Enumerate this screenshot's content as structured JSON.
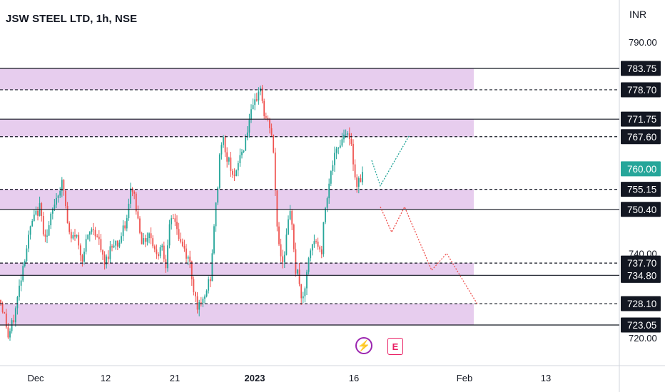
{
  "header": {
    "title": "JSW STEEL LTD, 1h, NSE",
    "currency": "INR"
  },
  "events": {
    "dividend_icon": "lightning-icon",
    "earnings_label": "E"
  },
  "colors": {
    "up": "#26a69a",
    "down": "#ef5350",
    "zone_fill": "#e7cdee",
    "current_price": "#26a69a",
    "projection_up": "#26a69a",
    "projection_down": "#ef5350",
    "lightning": "#9c27b0",
    "earnings": "#e91e63"
  },
  "chart_data": {
    "type": "candlestick",
    "ylim": [
      717,
      796
    ],
    "price_scale_ticks": [
      "790.00",
      "740.00",
      "720.00"
    ],
    "x_axis_labels": [
      "Dec",
      "12",
      "21",
      "2023",
      "16",
      "Feb",
      "13"
    ],
    "current_price": "760.00",
    "zones": [
      {
        "top": 783.75,
        "bottom": 778.7
      },
      {
        "top": 771.75,
        "bottom": 767.6
      },
      {
        "top": 755.15,
        "bottom": 750.4
      },
      {
        "top": 737.7,
        "bottom": 734.8
      },
      {
        "top": 728.1,
        "bottom": 723.05
      }
    ],
    "levels": [
      {
        "label": "783.75",
        "value": 783.75,
        "style": "solid"
      },
      {
        "label": "778.70",
        "value": 778.7,
        "style": "dashed"
      },
      {
        "label": "771.75",
        "value": 771.75,
        "style": "solid"
      },
      {
        "label": "767.60",
        "value": 767.6,
        "style": "dashed"
      },
      {
        "label": "755.15",
        "value": 755.15,
        "style": "dashed"
      },
      {
        "label": "750.40",
        "value": 750.4,
        "style": "solid"
      },
      {
        "label": "737.70",
        "value": 737.7,
        "style": "dashed"
      },
      {
        "label": "734.80",
        "value": 734.8,
        "style": "solid"
      },
      {
        "label": "728.10",
        "value": 728.1,
        "style": "dashed"
      },
      {
        "label": "723.05",
        "value": 723.05,
        "style": "solid"
      }
    ],
    "price_path": [
      [
        0,
        729
      ],
      [
        5,
        726
      ],
      [
        8,
        724
      ],
      [
        11,
        720
      ],
      [
        15,
        722
      ],
      [
        20,
        725
      ],
      [
        26,
        731
      ],
      [
        32,
        737
      ],
      [
        38,
        742
      ],
      [
        44,
        747
      ],
      [
        50,
        749
      ],
      [
        56,
        751
      ],
      [
        60,
        746
      ],
      [
        66,
        744
      ],
      [
        72,
        749
      ],
      [
        78,
        753
      ],
      [
        83,
        755
      ],
      [
        88,
        757
      ],
      [
        92,
        751
      ],
      [
        96,
        745
      ],
      [
        100,
        743
      ],
      [
        106,
        745
      ],
      [
        111,
        741
      ],
      [
        116,
        739
      ],
      [
        120,
        742
      ],
      [
        126,
        745
      ],
      [
        131,
        746
      ],
      [
        136,
        744
      ],
      [
        140,
        742
      ],
      [
        146,
        737
      ],
      [
        150,
        739
      ],
      [
        154,
        741
      ],
      [
        160,
        743
      ],
      [
        166,
        742
      ],
      [
        172,
        745
      ],
      [
        178,
        748
      ],
      [
        184,
        756
      ],
      [
        188,
        754
      ],
      [
        192,
        749
      ],
      [
        196,
        746
      ],
      [
        200,
        742
      ],
      [
        205,
        744
      ],
      [
        210,
        745
      ],
      [
        215,
        742
      ],
      [
        220,
        739
      ],
      [
        226,
        743
      ],
      [
        232,
        737
      ],
      [
        236,
        745
      ],
      [
        242,
        748
      ],
      [
        246,
        748
      ],
      [
        250,
        744
      ],
      [
        254,
        742
      ],
      [
        258,
        741
      ],
      [
        262,
        739
      ],
      [
        266,
        738
      ],
      [
        270,
        733
      ],
      [
        276,
        728
      ],
      [
        280,
        727
      ],
      [
        286,
        729
      ],
      [
        292,
        733
      ],
      [
        296,
        735
      ],
      [
        300,
        747
      ],
      [
        304,
        753
      ],
      [
        308,
        764
      ],
      [
        312,
        768
      ],
      [
        316,
        763
      ],
      [
        320,
        762
      ],
      [
        325,
        760
      ],
      [
        330,
        757
      ],
      [
        335,
        763
      ],
      [
        340,
        764
      ],
      [
        345,
        768
      ],
      [
        350,
        772
      ],
      [
        355,
        774
      ],
      [
        360,
        777
      ],
      [
        364,
        780
      ],
      [
        367,
        777
      ],
      [
        370,
        773
      ],
      [
        374,
        771
      ],
      [
        378,
        770
      ],
      [
        382,
        767
      ],
      [
        386,
        754
      ],
      [
        389,
        745
      ],
      [
        392,
        741
      ],
      [
        396,
        738
      ],
      [
        400,
        742
      ],
      [
        404,
        747
      ],
      [
        408,
        750
      ],
      [
        411,
        744
      ],
      [
        414,
        736
      ],
      [
        418,
        735
      ],
      [
        422,
        730
      ],
      [
        426,
        728
      ],
      [
        430,
        736
      ],
      [
        434,
        739
      ],
      [
        438,
        742
      ],
      [
        444,
        743
      ],
      [
        450,
        739
      ],
      [
        455,
        750
      ],
      [
        460,
        756
      ],
      [
        466,
        761
      ],
      [
        472,
        764
      ],
      [
        478,
        767
      ],
      [
        482,
        768
      ],
      [
        486,
        770
      ],
      [
        490,
        766
      ],
      [
        494,
        764
      ],
      [
        498,
        757
      ],
      [
        502,
        757
      ],
      [
        506,
        758
      ],
      [
        510,
        760
      ]
    ],
    "projection_up": [
      [
        521,
        762
      ],
      [
        533,
        756
      ],
      [
        574,
        768
      ]
    ],
    "projection_down": [
      [
        533,
        751
      ],
      [
        549,
        745
      ],
      [
        567,
        751
      ],
      [
        605,
        736
      ],
      [
        626,
        740
      ],
      [
        669,
        728
      ]
    ]
  }
}
